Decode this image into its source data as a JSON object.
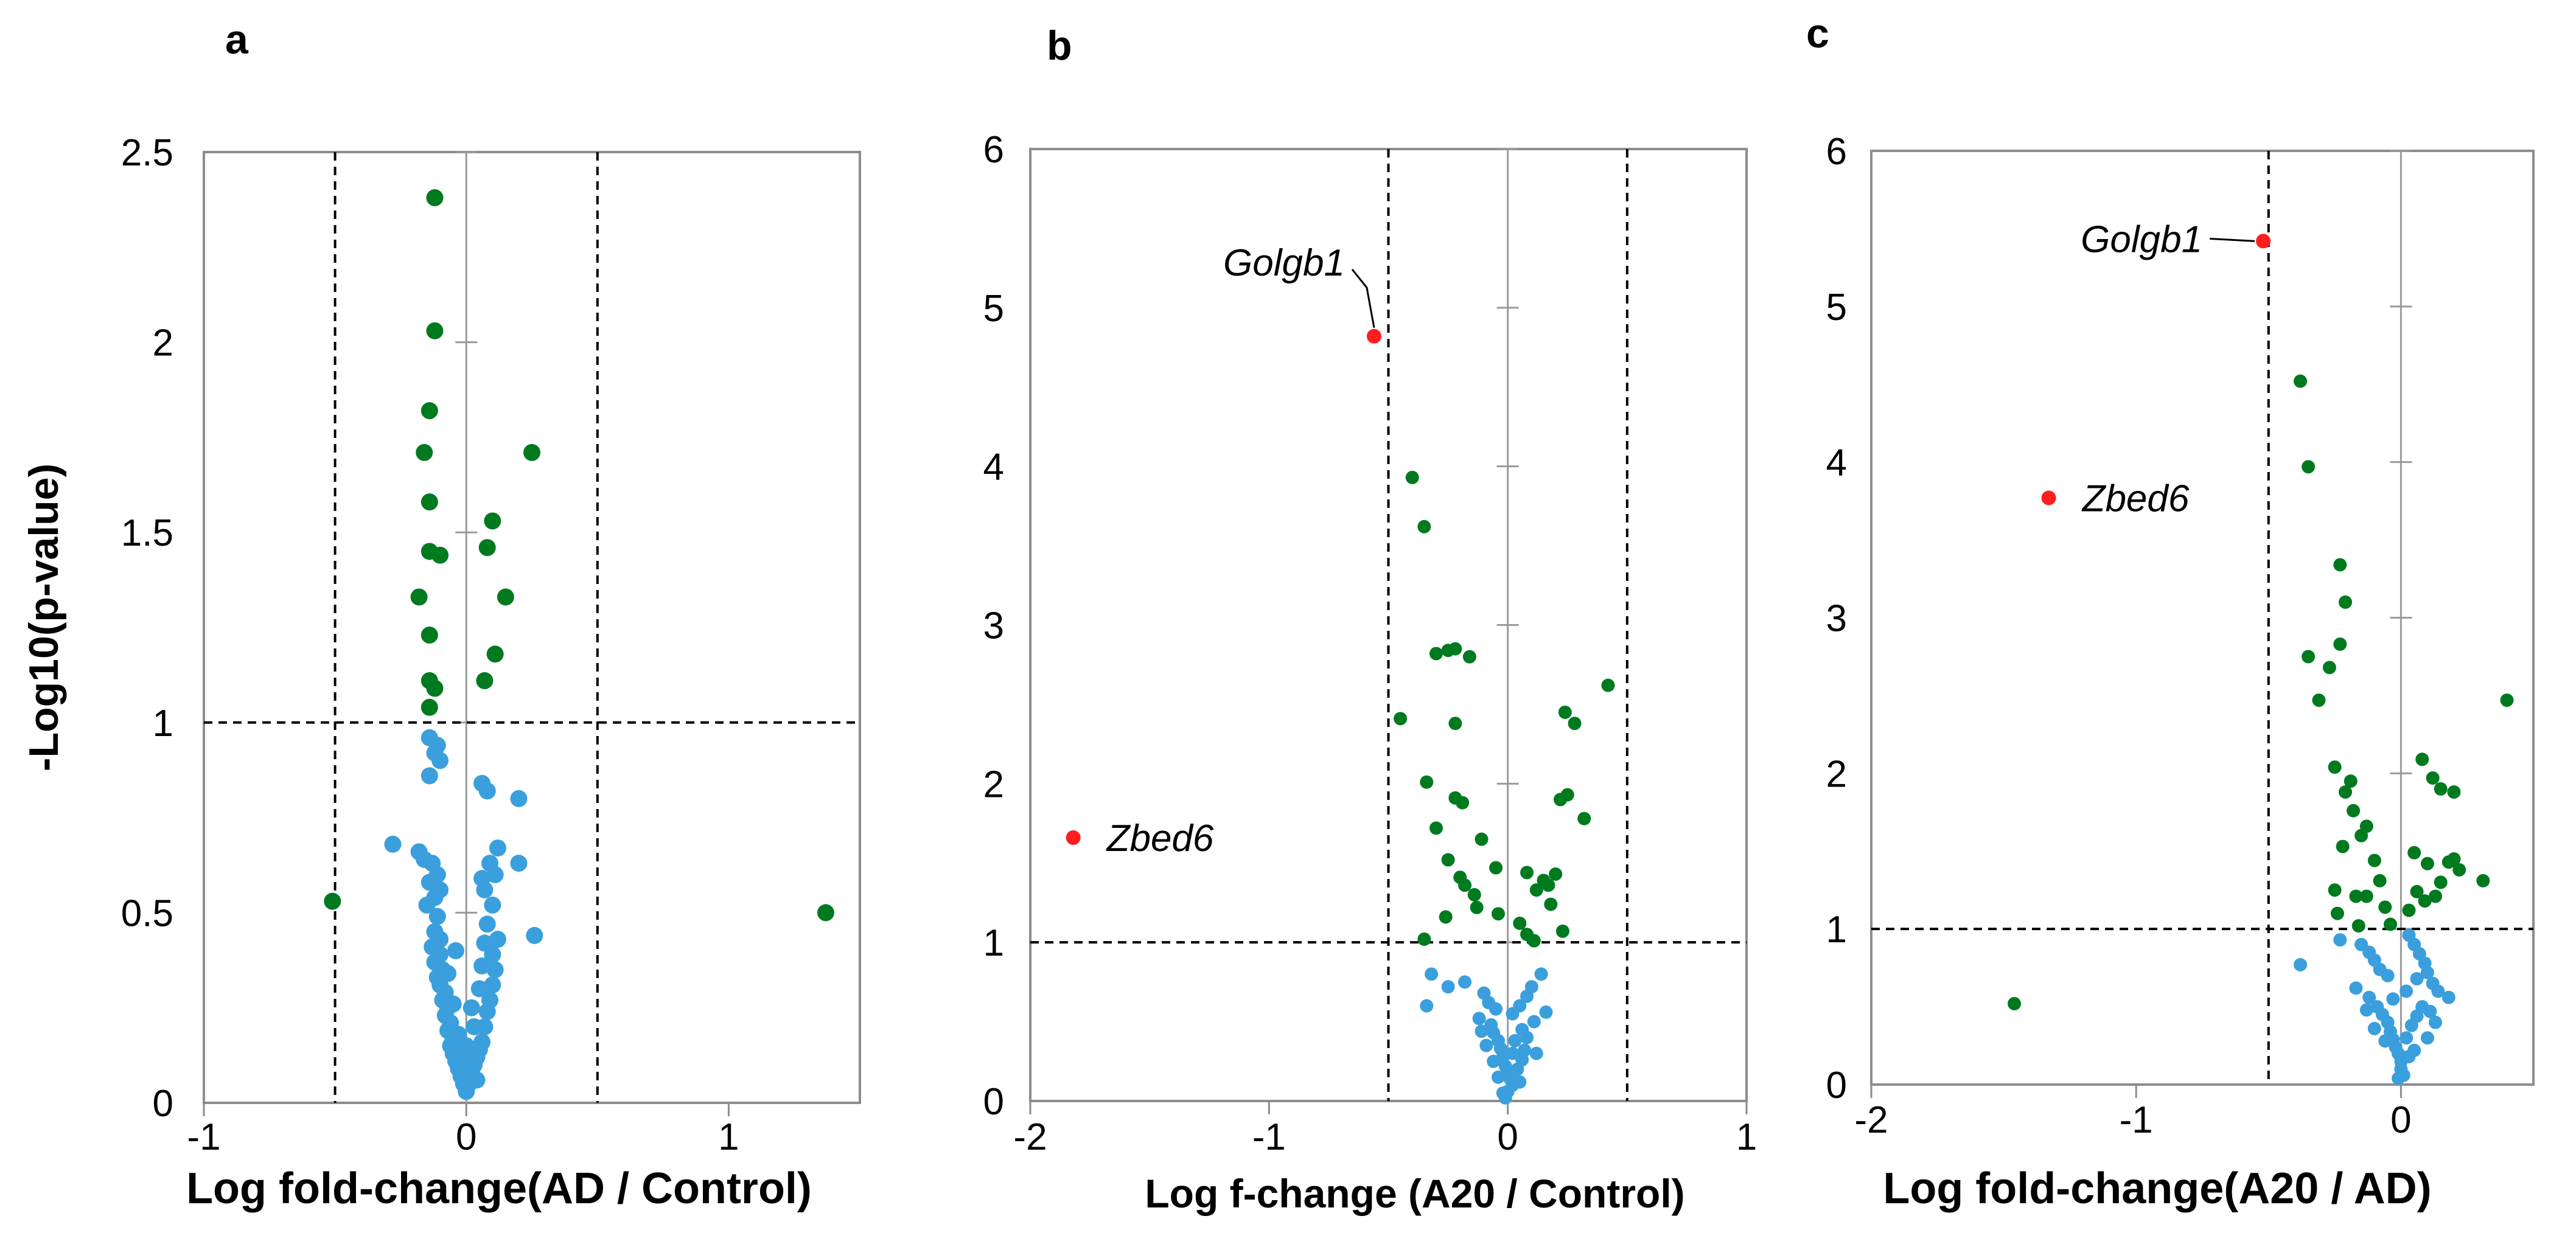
{
  "colors": {
    "green": "#007a1f",
    "blue": "#3a9fdc",
    "red": "#ff1e1e",
    "frame": "#8c8c8c"
  },
  "chart_data": [
    {
      "type": "scatter",
      "panel": "a",
      "title": "",
      "xlabel": "Log fold-change(AD / Control)",
      "ylabel": "-Log10(p-value)",
      "xlim": [
        -1.0,
        1.5
      ],
      "ylim": [
        0,
        2.5
      ],
      "xticks": [
        -1,
        0,
        1
      ],
      "xtick_labels": [
        "-1",
        "0",
        "1"
      ],
      "yticks": [
        0,
        0.5,
        1,
        1.5,
        2,
        2.5
      ],
      "ytick_labels": [
        "0",
        "0.5",
        "1",
        "1.5",
        "2",
        "2.5"
      ],
      "vlines": [
        -0.5,
        0.5
      ],
      "hline": 1,
      "green_points": [
        [
          -0.12,
          2.38
        ],
        [
          -0.12,
          2.03
        ],
        [
          -0.14,
          1.82
        ],
        [
          -0.16,
          1.71
        ],
        [
          0.25,
          1.71
        ],
        [
          -0.14,
          1.58
        ],
        [
          -0.14,
          1.45
        ],
        [
          -0.1,
          1.44
        ],
        [
          -0.18,
          1.33
        ],
        [
          0.1,
          1.53
        ],
        [
          0.08,
          1.46
        ],
        [
          0.15,
          1.33
        ],
        [
          -0.14,
          1.23
        ],
        [
          0.11,
          1.18
        ],
        [
          -0.14,
          1.11
        ],
        [
          -0.12,
          1.09
        ],
        [
          -0.14,
          1.04
        ],
        [
          0.07,
          1.11
        ],
        [
          -0.51,
          0.53
        ],
        [
          1.37,
          0.5
        ]
      ],
      "blue_points": [
        [
          -0.14,
          0.96
        ],
        [
          -0.11,
          0.94
        ],
        [
          -0.1,
          0.9
        ],
        [
          -0.12,
          0.92
        ],
        [
          -0.14,
          0.86
        ],
        [
          0.06,
          0.84
        ],
        [
          0.08,
          0.82
        ],
        [
          0.2,
          0.8
        ],
        [
          -0.28,
          0.68
        ],
        [
          -0.18,
          0.66
        ],
        [
          -0.16,
          0.64
        ],
        [
          -0.13,
          0.63
        ],
        [
          -0.11,
          0.6
        ],
        [
          -0.14,
          0.58
        ],
        [
          -0.1,
          0.56
        ],
        [
          -0.12,
          0.54
        ],
        [
          -0.15,
          0.52
        ],
        [
          -0.11,
          0.49
        ],
        [
          -0.12,
          0.45
        ],
        [
          -0.1,
          0.43
        ],
        [
          -0.13,
          0.41
        ],
        [
          -0.1,
          0.39
        ],
        [
          -0.12,
          0.37
        ],
        [
          -0.09,
          0.35
        ],
        [
          -0.11,
          0.33
        ],
        [
          -0.1,
          0.31
        ],
        [
          -0.08,
          0.29
        ],
        [
          -0.09,
          0.27
        ],
        [
          -0.07,
          0.25
        ],
        [
          -0.08,
          0.23
        ],
        [
          -0.06,
          0.21
        ],
        [
          -0.07,
          0.19
        ],
        [
          -0.05,
          0.17
        ],
        [
          -0.06,
          0.15
        ],
        [
          -0.05,
          0.13
        ],
        [
          -0.04,
          0.11
        ],
        [
          -0.03,
          0.09
        ],
        [
          -0.02,
          0.07
        ],
        [
          -0.01,
          0.05
        ],
        [
          0.0,
          0.03
        ],
        [
          0.01,
          0.05
        ],
        [
          0.02,
          0.08
        ],
        [
          0.03,
          0.1
        ],
        [
          0.04,
          0.12
        ],
        [
          0.05,
          0.14
        ],
        [
          0.06,
          0.16
        ],
        [
          0.07,
          0.2
        ],
        [
          0.08,
          0.24
        ],
        [
          0.09,
          0.27
        ],
        [
          0.1,
          0.31
        ],
        [
          0.11,
          0.35
        ],
        [
          0.1,
          0.39
        ],
        [
          0.12,
          0.43
        ],
        [
          0.08,
          0.47
        ],
        [
          0.1,
          0.52
        ],
        [
          0.07,
          0.56
        ],
        [
          0.11,
          0.6
        ],
        [
          0.09,
          0.63
        ],
        [
          0.06,
          0.59
        ],
        [
          0.2,
          0.63
        ],
        [
          0.26,
          0.44
        ],
        [
          0.12,
          0.67
        ],
        [
          0.04,
          0.06
        ],
        [
          -0.02,
          0.12
        ],
        [
          -0.05,
          0.26
        ],
        [
          0.03,
          0.2
        ],
        [
          0.05,
          0.3
        ],
        [
          -0.03,
          0.18
        ],
        [
          0.0,
          0.15
        ],
        [
          0.02,
          0.25
        ],
        [
          -0.07,
          0.34
        ],
        [
          0.06,
          0.36
        ],
        [
          -0.04,
          0.4
        ],
        [
          0.07,
          0.42
        ]
      ]
    },
    {
      "type": "scatter",
      "panel": "b",
      "title": "",
      "xlabel": "Log f-change (A20 / Control)",
      "ylabel": "",
      "xlim": [
        -2,
        1
      ],
      "ylim": [
        0,
        6
      ],
      "xticks": [
        -2,
        -1,
        0,
        1
      ],
      "xtick_labels": [
        "-2",
        "-1",
        "0",
        "1"
      ],
      "yticks": [
        0,
        1,
        2,
        3,
        4,
        5,
        6
      ],
      "ytick_labels": [
        "0",
        "1",
        "2",
        "3",
        "4",
        "5",
        "6"
      ],
      "vlines": [
        -0.5,
        0.5
      ],
      "hline": 1,
      "red_points": [
        {
          "x": -0.56,
          "y": 4.82,
          "label": "Golgb1"
        },
        {
          "x": -1.82,
          "y": 1.66,
          "label": "Zbed6"
        }
      ],
      "green_points": [
        [
          -0.4,
          3.93
        ],
        [
          -0.35,
          3.62
        ],
        [
          -0.3,
          2.82
        ],
        [
          -0.25,
          2.84
        ],
        [
          -0.22,
          2.85
        ],
        [
          -0.16,
          2.8
        ],
        [
          0.42,
          2.62
        ],
        [
          -0.45,
          2.41
        ],
        [
          -0.22,
          2.38
        ],
        [
          0.24,
          2.45
        ],
        [
          0.28,
          2.38
        ],
        [
          -0.34,
          2.01
        ],
        [
          -0.22,
          1.91
        ],
        [
          -0.19,
          1.88
        ],
        [
          0.22,
          1.9
        ],
        [
          0.25,
          1.93
        ],
        [
          0.32,
          1.78
        ],
        [
          -0.3,
          1.72
        ],
        [
          -0.11,
          1.65
        ],
        [
          -0.25,
          1.52
        ],
        [
          -0.05,
          1.47
        ],
        [
          -0.2,
          1.41
        ],
        [
          -0.18,
          1.36
        ],
        [
          -0.14,
          1.3
        ],
        [
          0.08,
          1.44
        ],
        [
          0.15,
          1.39
        ],
        [
          0.2,
          1.43
        ],
        [
          0.17,
          1.36
        ],
        [
          0.12,
          1.33
        ],
        [
          -0.26,
          1.16
        ],
        [
          -0.35,
          1.02
        ],
        [
          -0.04,
          1.18
        ],
        [
          0.05,
          1.12
        ],
        [
          0.08,
          1.05
        ],
        [
          0.11,
          1.01
        ],
        [
          0.23,
          1.07
        ],
        [
          -0.13,
          1.22
        ],
        [
          0.18,
          1.24
        ]
      ],
      "blue_points": [
        [
          -0.32,
          0.8
        ],
        [
          -0.25,
          0.72
        ],
        [
          -0.34,
          0.6
        ],
        [
          -0.18,
          0.75
        ],
        [
          -0.1,
          0.68
        ],
        [
          -0.08,
          0.62
        ],
        [
          -0.05,
          0.58
        ],
        [
          0.02,
          0.55
        ],
        [
          0.05,
          0.6
        ],
        [
          0.08,
          0.66
        ],
        [
          0.1,
          0.72
        ],
        [
          0.14,
          0.8
        ],
        [
          0.16,
          0.56
        ],
        [
          -0.12,
          0.52
        ],
        [
          -0.07,
          0.48
        ],
        [
          -0.06,
          0.43
        ],
        [
          -0.04,
          0.38
        ],
        [
          -0.03,
          0.33
        ],
        [
          -0.02,
          0.28
        ],
        [
          -0.01,
          0.22
        ],
        [
          0.0,
          0.18
        ],
        [
          0.01,
          0.14
        ],
        [
          0.02,
          0.1
        ],
        [
          0.0,
          0.06
        ],
        [
          -0.02,
          0.05
        ],
        [
          -0.04,
          0.15
        ],
        [
          0.04,
          0.2
        ],
        [
          0.06,
          0.26
        ],
        [
          0.07,
          0.32
        ],
        [
          0.08,
          0.4
        ],
        [
          0.06,
          0.45
        ],
        [
          0.11,
          0.5
        ],
        [
          -0.09,
          0.35
        ],
        [
          -0.11,
          0.44
        ],
        [
          0.03,
          0.38
        ],
        [
          0.12,
          0.3
        ],
        [
          -0.06,
          0.25
        ],
        [
          0.05,
          0.12
        ],
        [
          -0.01,
          0.02
        ],
        [
          0.02,
          0.3
        ]
      ]
    },
    {
      "type": "scatter",
      "panel": "c",
      "title": "",
      "xlabel": "Log fold-change(A20 / AD)",
      "ylabel": "",
      "xlim": [
        -2,
        0.5
      ],
      "ylim": [
        0,
        6
      ],
      "xticks": [
        -2,
        -1,
        0
      ],
      "xtick_labels": [
        "-2",
        "-1",
        "0"
      ],
      "yticks": [
        0,
        1,
        2,
        3,
        4,
        5,
        6
      ],
      "ytick_labels": [
        "0",
        "1",
        "2",
        "3",
        "4",
        "5",
        "6"
      ],
      "vlines": [
        -0.5
      ],
      "hline": 1,
      "red_points": [
        {
          "x": -0.52,
          "y": 5.42,
          "label": "Golgb1"
        },
        {
          "x": -1.33,
          "y": 3.77,
          "label": "Zbed6"
        }
      ],
      "green_points": [
        [
          -0.38,
          4.52
        ],
        [
          -0.35,
          3.97
        ],
        [
          -0.23,
          3.34
        ],
        [
          -0.21,
          3.1
        ],
        [
          -0.23,
          2.83
        ],
        [
          -0.35,
          2.75
        ],
        [
          -0.27,
          2.68
        ],
        [
          -0.31,
          2.47
        ],
        [
          0.4,
          2.47
        ],
        [
          0.08,
          2.09
        ],
        [
          0.12,
          1.97
        ],
        [
          0.15,
          1.9
        ],
        [
          0.2,
          1.88
        ],
        [
          -0.25,
          2.04
        ],
        [
          -0.19,
          1.95
        ],
        [
          -0.21,
          1.88
        ],
        [
          -0.18,
          1.76
        ],
        [
          -0.13,
          1.66
        ],
        [
          -0.15,
          1.6
        ],
        [
          -0.22,
          1.53
        ],
        [
          -0.1,
          1.44
        ],
        [
          0.05,
          1.49
        ],
        [
          0.1,
          1.42
        ],
        [
          0.18,
          1.43
        ],
        [
          0.22,
          1.38
        ],
        [
          0.2,
          1.45
        ],
        [
          0.15,
          1.3
        ],
        [
          0.31,
          1.31
        ],
        [
          -0.25,
          1.25
        ],
        [
          -0.17,
          1.21
        ],
        [
          -0.13,
          1.21
        ],
        [
          -0.08,
          1.31
        ],
        [
          -0.04,
          1.03
        ],
        [
          0.03,
          1.12
        ],
        [
          0.06,
          1.24
        ],
        [
          0.09,
          1.18
        ],
        [
          0.13,
          1.21
        ],
        [
          -0.24,
          1.1
        ],
        [
          -0.16,
          1.02
        ],
        [
          -0.06,
          1.14
        ]
      ],
      "green_outliers": [
        [
          -1.46,
          0.52
        ]
      ],
      "blue_points": [
        [
          -0.38,
          0.77
        ],
        [
          -0.23,
          0.93
        ],
        [
          -0.15,
          0.9
        ],
        [
          -0.12,
          0.85
        ],
        [
          -0.1,
          0.8
        ],
        [
          -0.08,
          0.74
        ],
        [
          -0.05,
          0.7
        ],
        [
          0.03,
          0.96
        ],
        [
          0.05,
          0.9
        ],
        [
          0.07,
          0.84
        ],
        [
          0.09,
          0.78
        ],
        [
          0.1,
          0.72
        ],
        [
          0.12,
          0.65
        ],
        [
          0.14,
          0.6
        ],
        [
          0.18,
          0.56
        ],
        [
          -0.17,
          0.62
        ],
        [
          -0.12,
          0.56
        ],
        [
          -0.09,
          0.5
        ],
        [
          -0.07,
          0.45
        ],
        [
          -0.05,
          0.4
        ],
        [
          -0.04,
          0.34
        ],
        [
          -0.03,
          0.29
        ],
        [
          -0.02,
          0.24
        ],
        [
          -0.01,
          0.2
        ],
        [
          0.0,
          0.15
        ],
        [
          0.0,
          0.1
        ],
        [
          0.01,
          0.06
        ],
        [
          -0.01,
          0.04
        ],
        [
          0.02,
          0.3
        ],
        [
          0.04,
          0.38
        ],
        [
          0.06,
          0.44
        ],
        [
          0.08,
          0.5
        ],
        [
          0.11,
          0.47
        ],
        [
          0.05,
          0.22
        ],
        [
          0.03,
          0.18
        ],
        [
          -0.06,
          0.28
        ],
        [
          -0.1,
          0.36
        ],
        [
          0.1,
          0.3
        ],
        [
          0.13,
          0.4
        ],
        [
          -0.13,
          0.48
        ],
        [
          0.02,
          0.6
        ],
        [
          0.06,
          0.68
        ],
        [
          -0.03,
          0.55
        ]
      ]
    }
  ],
  "panels": [
    {
      "letter": "a",
      "xlabel": "Log fold-change(AD / Control)",
      "ylabel": "-Log10(p-value)",
      "ytick_labels": [
        "0",
        "0.5",
        "1",
        "1.5",
        "2",
        "2.5"
      ],
      "xtick_labels": [
        "-1",
        "0",
        "1"
      ]
    },
    {
      "letter": "b",
      "xlabel": "Log f-change (A20 / Control)",
      "ytick_labels": [
        "0",
        "1",
        "2",
        "3",
        "4",
        "5",
        "6"
      ],
      "xtick_labels": [
        "-2",
        "-1",
        "0",
        "1"
      ],
      "gene_labels": [
        "Golgb1",
        "Zbed6"
      ]
    },
    {
      "letter": "c",
      "xlabel": "Log fold-change(A20 / AD)",
      "ytick_labels": [
        "0",
        "1",
        "2",
        "3",
        "4",
        "5",
        "6"
      ],
      "xtick_labels": [
        "-2",
        "-1",
        "0"
      ],
      "gene_labels": [
        "Golgb1",
        "Zbed6"
      ]
    }
  ]
}
